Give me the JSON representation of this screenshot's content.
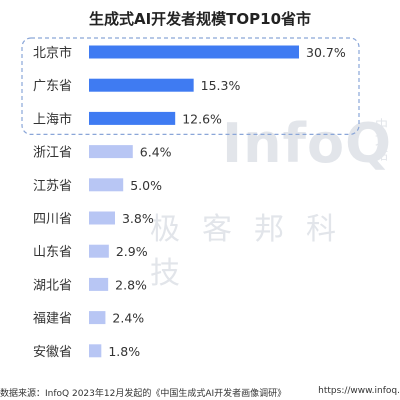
{
  "chart_data": {
    "type": "bar",
    "orientation": "horizontal",
    "title": "生成式AI开发者规模TOP10省市",
    "categories": [
      "北京市",
      "广东省",
      "上海市",
      "浙江省",
      "江苏省",
      "四川省",
      "山东省",
      "湖北省",
      "福建省",
      "安徽省"
    ],
    "values": [
      30.7,
      15.3,
      12.6,
      6.4,
      5.0,
      3.8,
      2.9,
      2.8,
      2.4,
      1.8
    ],
    "value_labels": [
      "30.7%",
      "15.3%",
      "12.6%",
      "6.4%",
      "5.0%",
      "3.8%",
      "2.9%",
      "2.8%",
      "2.4%",
      "1.8%"
    ],
    "unit": "%",
    "highlight_top": 3,
    "colors": {
      "highlight": "#3f7bf2",
      "normal": "#b8c6f4",
      "box": "#8aa6d8"
    },
    "grid": false,
    "legend": "none"
  },
  "watermark": {
    "logo": "InfoQ",
    "side": "中文站",
    "cn": "极客邦科技"
  },
  "footer": {
    "source": "数据来源：InfoQ 2023年12月发起的《中国生成式AI开发者画像调研》",
    "url": "https://www.infoq."
  }
}
